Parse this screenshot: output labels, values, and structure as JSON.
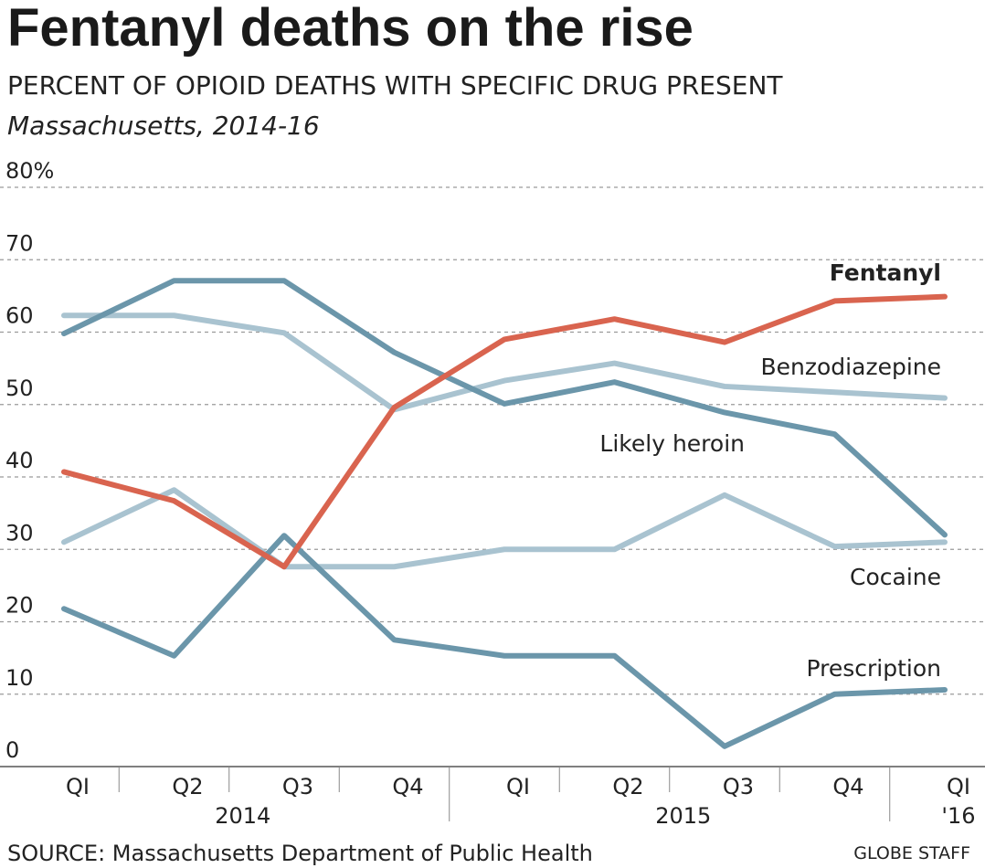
{
  "chart_data": {
    "type": "line",
    "title": "Fentanyl deaths on the rise",
    "subtitle": "PERCENT OF OPIOID DEATHS WITH SPECIFIC DRUG PRESENT",
    "subtitle2": "Massachusetts, 2014-16",
    "ylim": [
      0,
      80
    ],
    "y_ticks": [
      {
        "value": 0,
        "label": "0"
      },
      {
        "value": 10,
        "label": "10"
      },
      {
        "value": 20,
        "label": "20"
      },
      {
        "value": 30,
        "label": "30"
      },
      {
        "value": 40,
        "label": "40"
      },
      {
        "value": 50,
        "label": "50"
      },
      {
        "value": 60,
        "label": "60"
      },
      {
        "value": 70,
        "label": "70"
      },
      {
        "value": 80,
        "label": "80%"
      }
    ],
    "categories": [
      "QI",
      "Q2",
      "Q3",
      "Q4",
      "QI",
      "Q2",
      "Q3",
      "Q4",
      "QI"
    ],
    "year_labels": [
      {
        "label": "2014",
        "start": 0,
        "end": 3
      },
      {
        "label": "2015",
        "start": 4,
        "end": 7
      },
      {
        "label": "'16",
        "start": 8,
        "end": 8
      }
    ],
    "grid": true,
    "series": [
      {
        "name": "Fentanyl",
        "color": "#d9644f",
        "bold": true,
        "values": [
          40.7,
          36.7,
          27.6,
          49.6,
          59.0,
          61.8,
          58.6,
          64.3,
          64.9
        ]
      },
      {
        "name": "Benzodiazepine",
        "color": "#a9c3d0",
        "bold": false,
        "values": [
          62.3,
          62.3,
          59.9,
          49.3,
          53.3,
          55.7,
          52.5,
          51.7,
          50.9
        ]
      },
      {
        "name": "Likely heroin",
        "color": "#6b96aa",
        "bold": false,
        "values": [
          59.8,
          67.1,
          67.1,
          57.2,
          50.1,
          53.1,
          48.9,
          45.9,
          32.0
        ]
      },
      {
        "name": "Cocaine",
        "color": "#a9c3d0",
        "bold": false,
        "values": [
          31.0,
          38.2,
          27.6,
          27.6,
          30.0,
          30.0,
          37.5,
          30.4,
          31.0
        ]
      },
      {
        "name": "Prescription",
        "color": "#6b96aa",
        "bold": false,
        "values": [
          21.8,
          15.3,
          31.9,
          17.5,
          15.3,
          15.3,
          2.8,
          10.0,
          10.6
        ]
      }
    ]
  },
  "source": "SOURCE: Massachusetts Department of Public Health",
  "credit": "GLOBE STAFF"
}
